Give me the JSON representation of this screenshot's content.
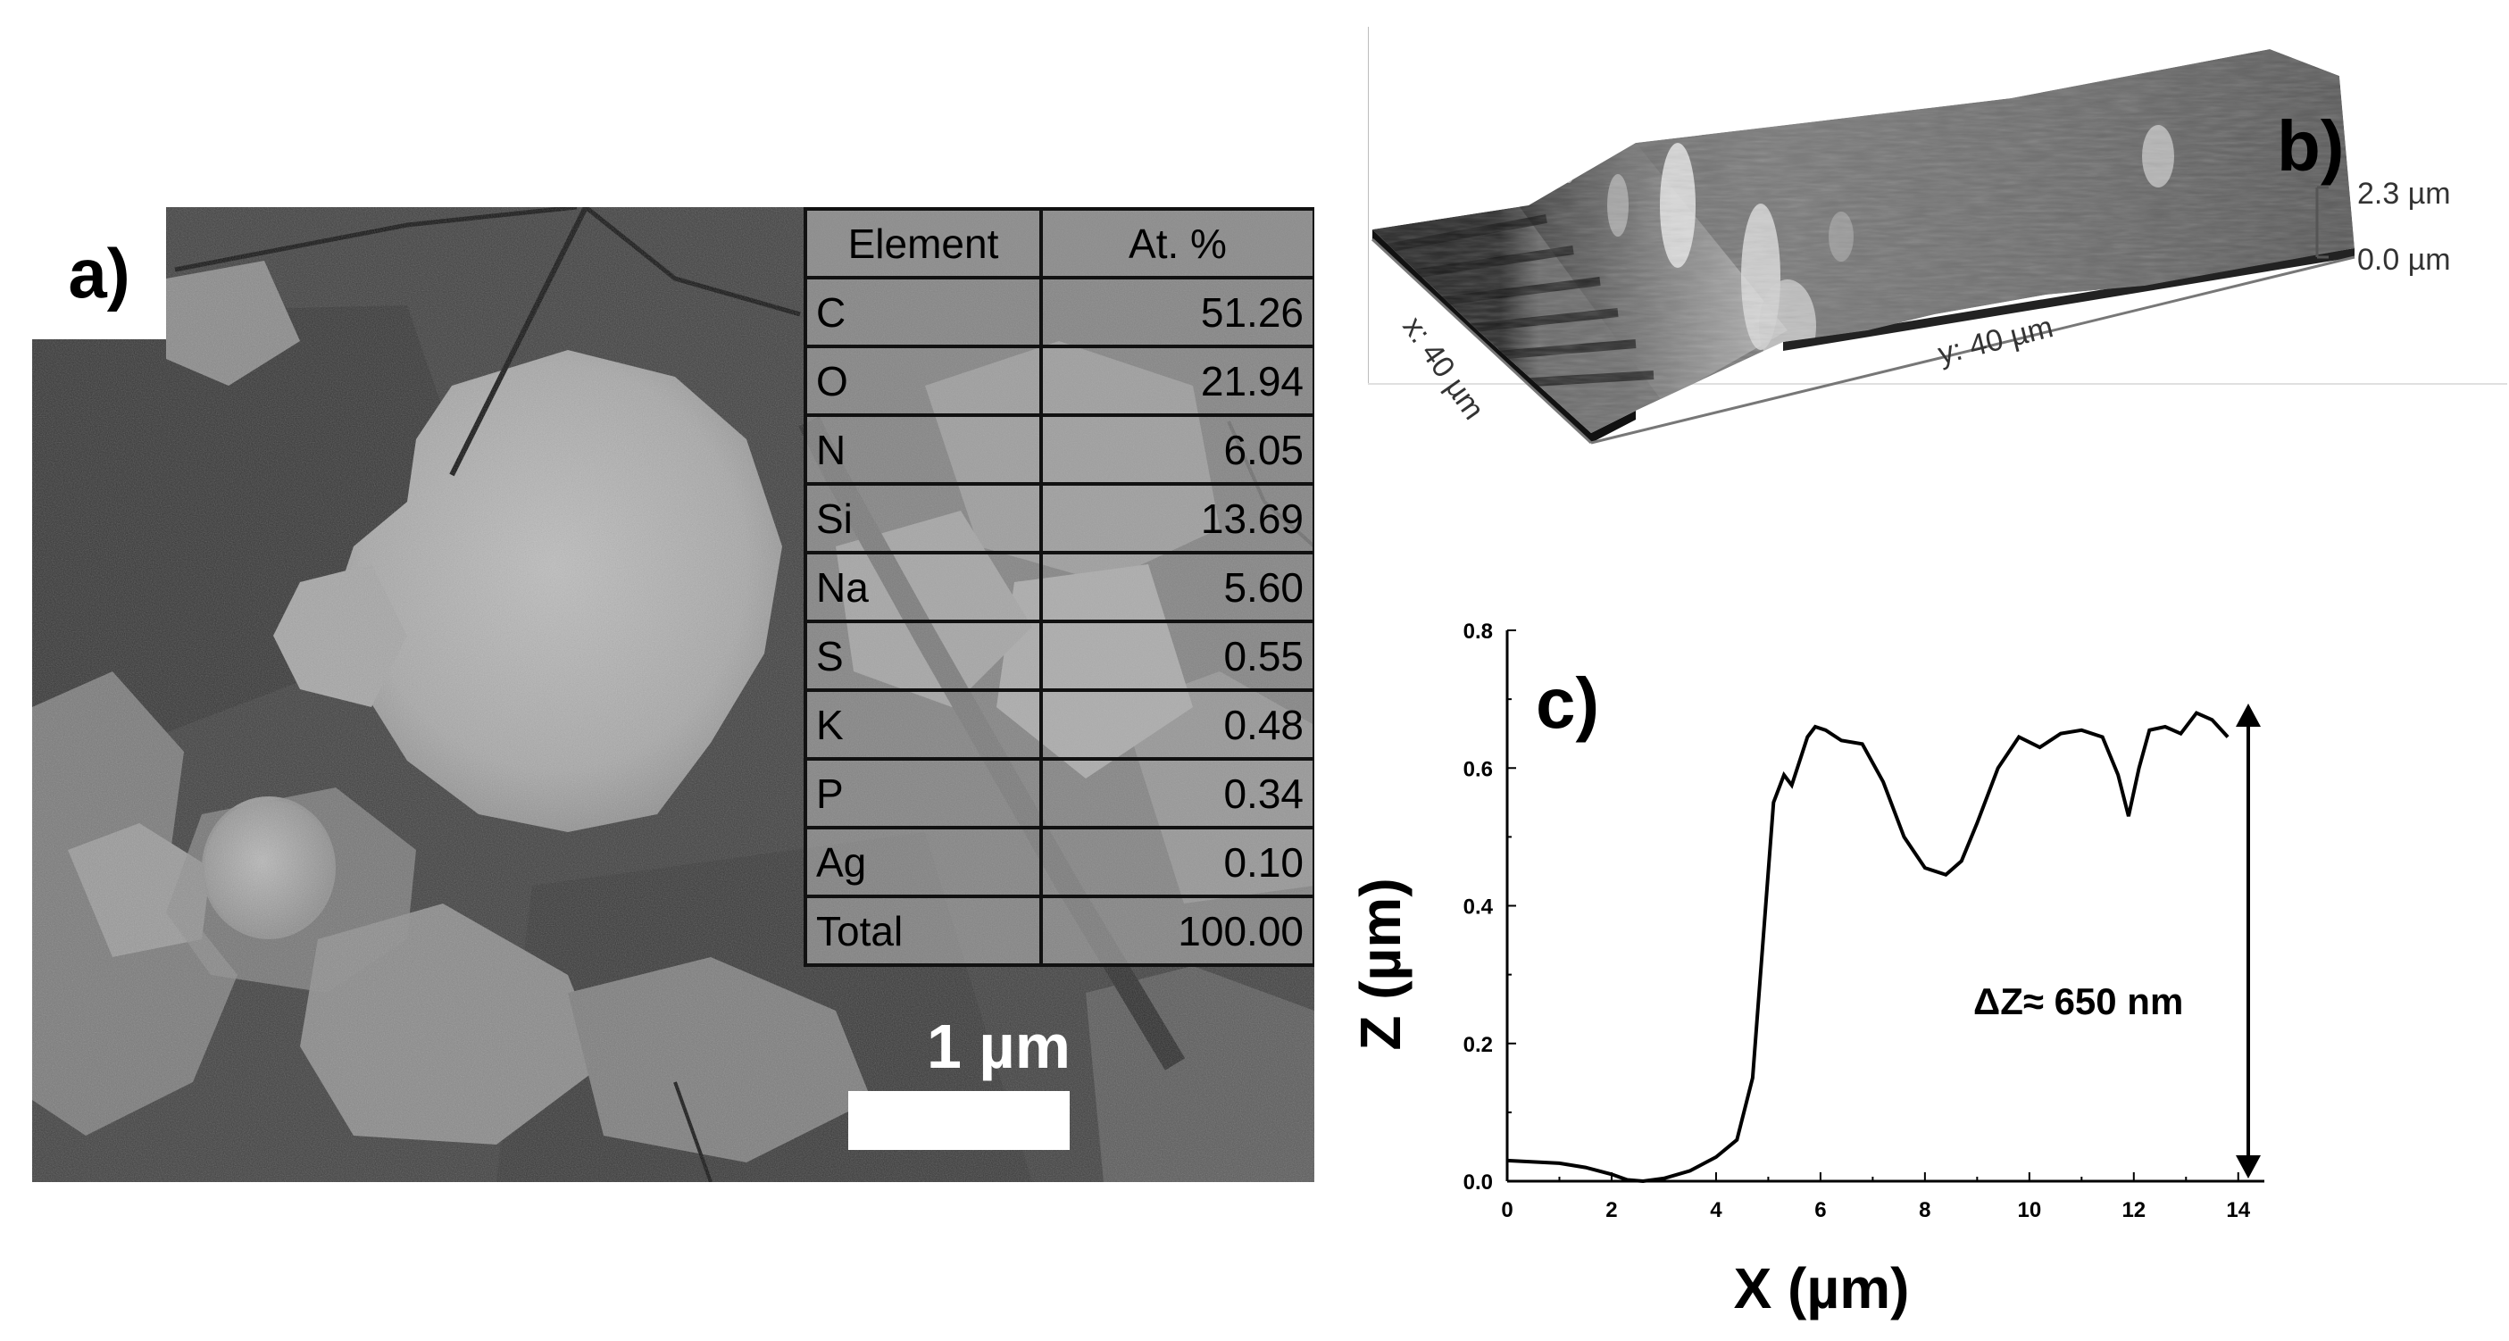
{
  "panel_a": {
    "label": "a)",
    "table": {
      "headers": [
        "Element",
        "At. %"
      ],
      "rows": [
        {
          "element": "C",
          "value": "51.26"
        },
        {
          "element": "O",
          "value": "21.94"
        },
        {
          "element": "N",
          "value": "6.05"
        },
        {
          "element": "Si",
          "value": "13.69"
        },
        {
          "element": "Na",
          "value": "5.60"
        },
        {
          "element": "S",
          "value": "0.55"
        },
        {
          "element": "K",
          "value": "0.48"
        },
        {
          "element": "P",
          "value": "0.34"
        },
        {
          "element": "Ag",
          "value": "0.10"
        },
        {
          "element": "Total",
          "value": "100.00"
        }
      ]
    },
    "scale_bar_label": "1 µm"
  },
  "panel_b": {
    "label": "b)",
    "x_axis_label": "x: 40 µm",
    "y_axis_label": "y: 40 µm",
    "z_max_label": "2.3 µm",
    "z_min_label": "0.0 µm"
  },
  "panel_c": {
    "label": "c)",
    "annotation": "ΔZ≈ 650 nm"
  },
  "chart_data": {
    "type": "line",
    "xlabel": "X (µm)",
    "ylabel": "Z (µm)",
    "xlim": [
      0,
      14.5
    ],
    "ylim": [
      0,
      0.8
    ],
    "xticks": [
      "0",
      "2",
      "4",
      "6",
      "8",
      "10",
      "12",
      "14"
    ],
    "yticks": [
      "0.0",
      "0.2",
      "0.4",
      "0.6",
      "0.8"
    ],
    "x": [
      0,
      0.5,
      1.0,
      1.5,
      2.0,
      2.3,
      2.6,
      3.0,
      3.5,
      4.0,
      4.4,
      4.7,
      4.9,
      5.1,
      5.3,
      5.45,
      5.6,
      5.75,
      5.9,
      6.1,
      6.4,
      6.8,
      7.2,
      7.6,
      8.0,
      8.4,
      8.7,
      9.0,
      9.4,
      9.8,
      10.2,
      10.6,
      11.0,
      11.4,
      11.7,
      11.9,
      12.1,
      12.3,
      12.6,
      12.9,
      13.2,
      13.5,
      13.8
    ],
    "y": [
      0.03,
      0.028,
      0.026,
      0.02,
      0.01,
      0.002,
      0.0,
      0.004,
      0.015,
      0.035,
      0.06,
      0.15,
      0.35,
      0.55,
      0.59,
      0.575,
      0.61,
      0.645,
      0.66,
      0.655,
      0.64,
      0.635,
      0.58,
      0.5,
      0.455,
      0.445,
      0.465,
      0.52,
      0.6,
      0.645,
      0.63,
      0.65,
      0.655,
      0.645,
      0.59,
      0.53,
      0.6,
      0.655,
      0.66,
      0.65,
      0.68,
      0.67,
      0.645
    ]
  }
}
